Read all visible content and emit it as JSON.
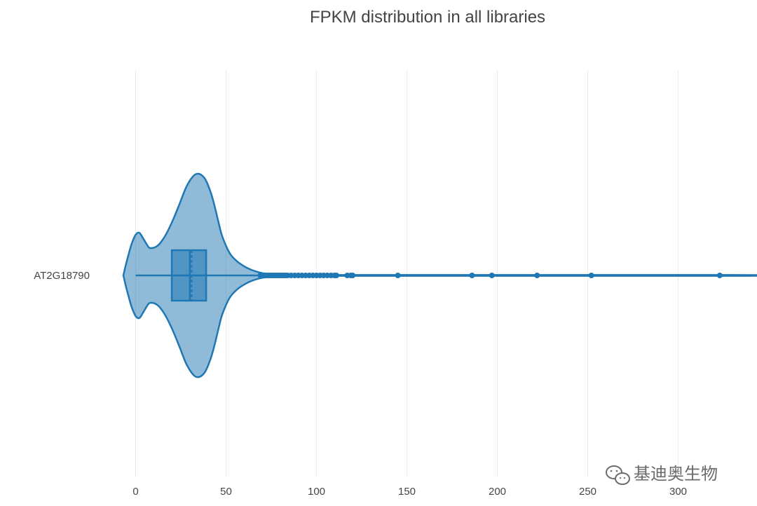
{
  "chart_data": {
    "type": "violin",
    "title": "FPKM distribution in all libraries",
    "xlabel": "",
    "ylabel": "",
    "orientation": "horizontal",
    "categories": [
      "AT2G18790"
    ],
    "xlim": [
      -7,
      330
    ],
    "xticks": [
      0,
      50,
      100,
      150,
      200,
      250,
      300
    ],
    "grid": true,
    "legend": false,
    "color": "#1f77b4",
    "series": [
      {
        "category": "AT2G18790",
        "density": {
          "x": [
            -6.5,
            -4,
            -2,
            0,
            2,
            4,
            6,
            8,
            12,
            16,
            20,
            24,
            28,
            32,
            35,
            38,
            40,
            42,
            44,
            46,
            48,
            52,
            56,
            60,
            64,
            68,
            72,
            80,
            100,
            120,
            330
          ],
          "width": [
            0.02,
            0.2,
            0.32,
            0.4,
            0.42,
            0.37,
            0.31,
            0.27,
            0.29,
            0.38,
            0.52,
            0.69,
            0.87,
            0.98,
            1.0,
            0.96,
            0.89,
            0.79,
            0.66,
            0.51,
            0.38,
            0.22,
            0.14,
            0.09,
            0.055,
            0.032,
            0.018,
            0.01,
            0.006,
            0.004,
            0.004
          ]
        },
        "box": {
          "q1": 20,
          "median": 30,
          "q3": 39,
          "mean": 31,
          "whisker_low": 0,
          "whisker_high": 330
        },
        "outliers": [
          69,
          70,
          71,
          72,
          73,
          74,
          75,
          76,
          77,
          78,
          79,
          80,
          81,
          82,
          83,
          84,
          86,
          88,
          90,
          92,
          94,
          96,
          98,
          100,
          102,
          104,
          106,
          108,
          110,
          111,
          117,
          119,
          120,
          145,
          186,
          197,
          222,
          252,
          323
        ]
      }
    ]
  },
  "watermark": {
    "text": "基迪奥生物",
    "icon": "wechat-icon"
  }
}
